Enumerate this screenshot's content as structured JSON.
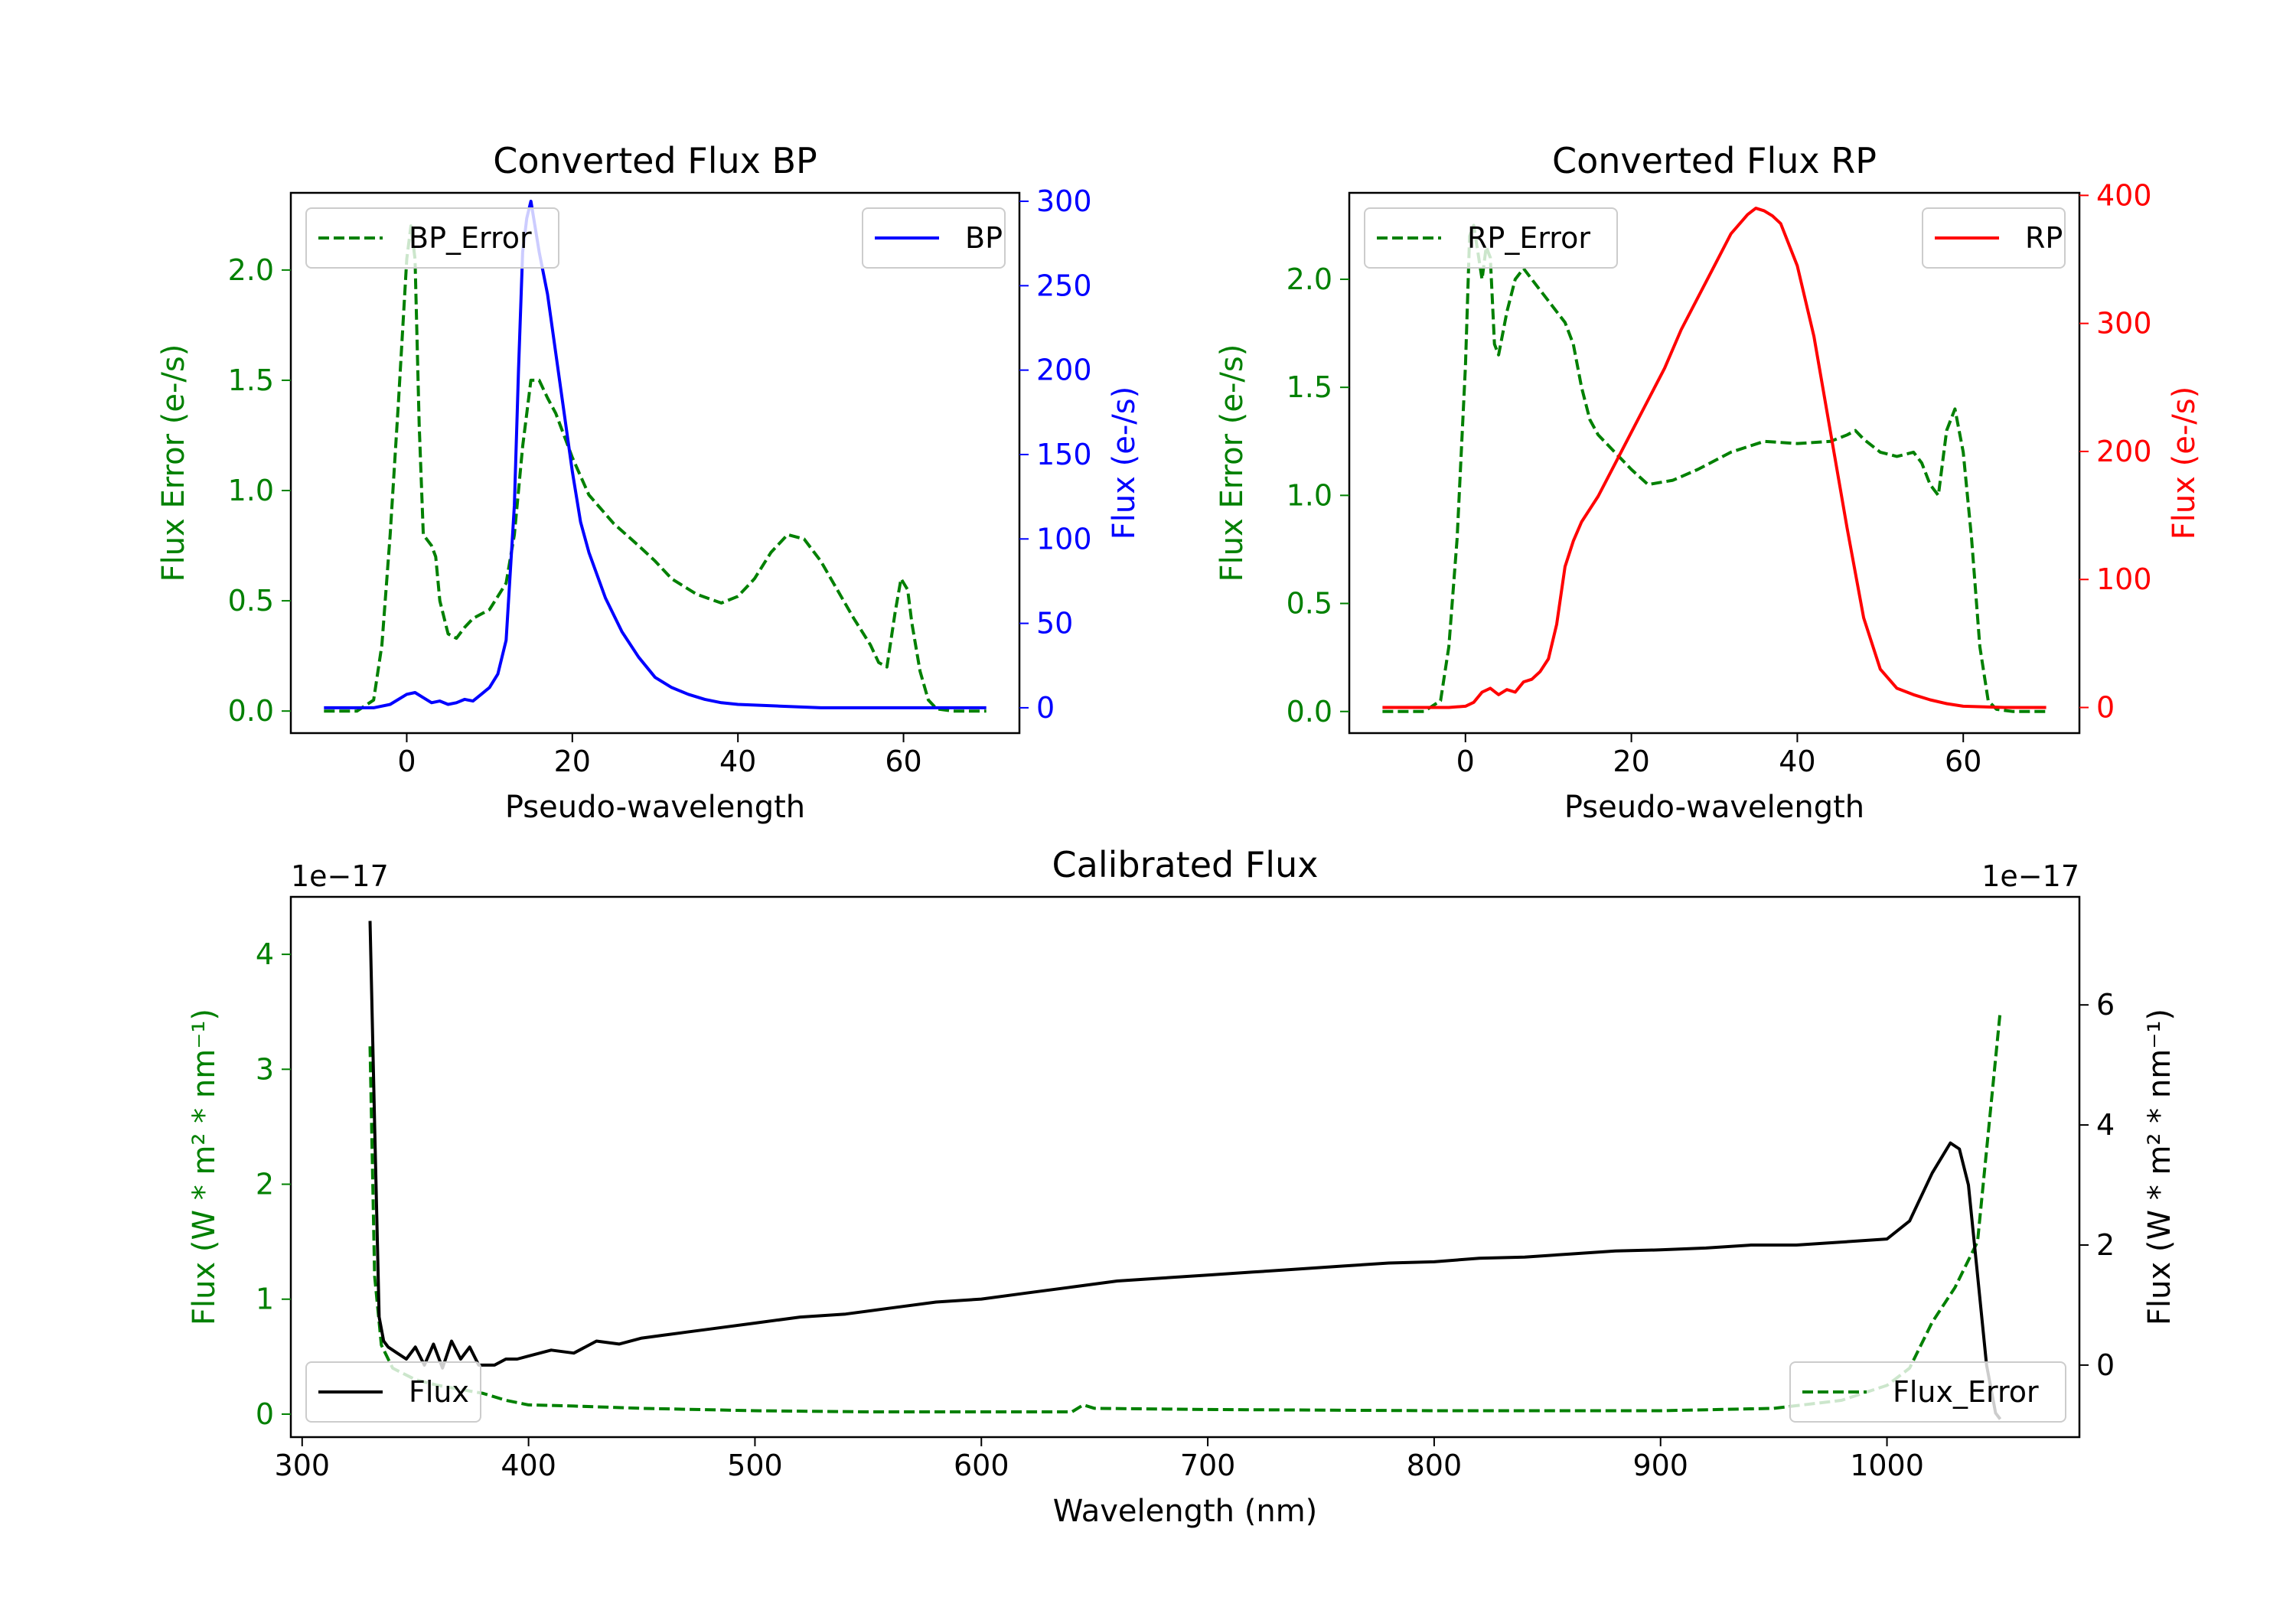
{
  "chart_data": [
    {
      "id": "bp",
      "type": "line",
      "title": "Converted Flux BP",
      "xlabel": "Pseudo-wavelength",
      "ylabel_left": "Flux Error (e-/s)",
      "ylabel_right": "Flux (e-/s)",
      "xlim": [
        -14,
        74
      ],
      "ylim_left": [
        -0.1,
        2.35
      ],
      "ylim_right": [
        -15,
        305
      ],
      "xticks": [
        0,
        20,
        40,
        60
      ],
      "yticks_left": [
        0.0,
        0.5,
        1.0,
        1.5,
        2.0
      ],
      "yticks_right": [
        0,
        50,
        100,
        150,
        200,
        250,
        300
      ],
      "legend_left_label": "BP_Error",
      "legend_right_label": "BP",
      "left_axis_color": "#008000",
      "right_axis_color": "#0000ff",
      "series": [
        {
          "name": "BP_Error",
          "axis": "left",
          "color": "#008000",
          "dashed": true,
          "x": [
            -10,
            -6,
            -4,
            -3,
            -2,
            -1,
            0,
            0.5,
            1,
            1.5,
            2,
            3,
            3.5,
            4,
            5,
            6,
            7,
            8,
            9,
            10,
            11,
            12,
            13,
            14,
            15,
            16,
            17,
            18,
            20,
            22,
            25,
            28,
            30,
            32,
            35,
            38,
            40,
            42,
            44,
            46,
            48,
            50,
            52,
            54,
            56,
            57,
            58,
            59,
            59.7,
            60.5,
            61,
            62,
            63,
            64,
            66,
            70
          ],
          "y": [
            0.0,
            0.0,
            0.05,
            0.3,
            0.8,
            1.4,
            2.05,
            2.2,
            2.05,
            1.3,
            0.8,
            0.75,
            0.7,
            0.5,
            0.35,
            0.33,
            0.38,
            0.42,
            0.44,
            0.46,
            0.52,
            0.58,
            0.8,
            1.2,
            1.5,
            1.5,
            1.42,
            1.35,
            1.15,
            0.98,
            0.85,
            0.75,
            0.68,
            0.6,
            0.53,
            0.49,
            0.52,
            0.6,
            0.72,
            0.8,
            0.78,
            0.68,
            0.55,
            0.42,
            0.3,
            0.22,
            0.2,
            0.45,
            0.6,
            0.55,
            0.4,
            0.18,
            0.05,
            0.01,
            0.0,
            0.0
          ]
        },
        {
          "name": "BP",
          "axis": "right",
          "color": "#0000ff",
          "dashed": false,
          "x": [
            -10,
            -6,
            -4,
            -2,
            0,
            1,
            2,
            3,
            4,
            5,
            6,
            7,
            8,
            9,
            10,
            11,
            12,
            13,
            13.5,
            14,
            14.5,
            15,
            15.5,
            16,
            17,
            18,
            19,
            20,
            21,
            22,
            24,
            26,
            28,
            30,
            32,
            34,
            36,
            38,
            40,
            45,
            50,
            55,
            60,
            65,
            70
          ],
          "y": [
            0,
            0,
            0,
            2,
            8,
            9,
            6,
            3,
            4,
            2,
            3,
            5,
            4,
            8,
            12,
            20,
            40,
            120,
            200,
            270,
            290,
            300,
            285,
            270,
            245,
            210,
            175,
            140,
            110,
            92,
            65,
            45,
            30,
            18,
            12,
            8,
            5,
            3,
            2,
            1,
            0,
            0,
            0,
            0,
            0
          ]
        }
      ]
    },
    {
      "id": "rp",
      "type": "line",
      "title": "Converted Flux RP",
      "xlabel": "Pseudo-wavelength",
      "ylabel_left": "Flux Error (e-/s)",
      "ylabel_right": "Flux (e-/s)",
      "xlim": [
        -14,
        74
      ],
      "ylim_left": [
        -0.1,
        2.4
      ],
      "ylim_right": [
        -20,
        402
      ],
      "xticks": [
        0,
        20,
        40,
        60
      ],
      "yticks_left": [
        0.0,
        0.5,
        1.0,
        1.5,
        2.0
      ],
      "yticks_right": [
        0,
        100,
        200,
        300,
        400
      ],
      "legend_left_label": "RP_Error",
      "legend_right_label": "RP",
      "left_axis_color": "#008000",
      "right_axis_color": "#ff0000",
      "series": [
        {
          "name": "RP_Error",
          "axis": "left",
          "color": "#008000",
          "dashed": true,
          "x": [
            -10,
            -5,
            -3,
            -2,
            -1,
            0,
            0.5,
            1,
            2,
            2.5,
            3,
            3.5,
            4,
            5,
            6,
            7,
            8,
            9,
            10,
            11,
            12,
            13,
            14,
            15,
            16,
            18,
            20,
            22,
            25,
            28,
            32,
            36,
            40,
            44,
            46,
            47,
            48,
            50,
            52,
            54,
            55,
            56,
            57,
            58,
            59,
            60,
            61,
            62,
            63,
            64,
            66,
            70
          ],
          "y": [
            0.0,
            0.0,
            0.05,
            0.3,
            0.8,
            1.6,
            2.2,
            2.25,
            2.0,
            2.15,
            2.1,
            1.7,
            1.65,
            1.85,
            2.0,
            2.05,
            2.0,
            1.95,
            1.9,
            1.85,
            1.8,
            1.7,
            1.5,
            1.35,
            1.28,
            1.2,
            1.12,
            1.05,
            1.07,
            1.12,
            1.2,
            1.25,
            1.24,
            1.25,
            1.28,
            1.3,
            1.26,
            1.2,
            1.18,
            1.2,
            1.15,
            1.05,
            1.0,
            1.3,
            1.4,
            1.2,
            0.8,
            0.3,
            0.05,
            0.01,
            0.0,
            0.0
          ]
        },
        {
          "name": "RP",
          "axis": "right",
          "color": "#ff0000",
          "dashed": false,
          "x": [
            -10,
            -5,
            -2,
            0,
            1,
            2,
            3,
            4,
            5,
            6,
            7,
            8,
            9,
            10,
            11,
            12,
            13,
            14,
            15,
            16,
            18,
            20,
            22,
            24,
            26,
            28,
            30,
            32,
            34,
            35,
            36,
            37,
            38,
            40,
            42,
            44,
            46,
            48,
            50,
            52,
            54,
            56,
            58,
            60,
            65,
            70
          ],
          "y": [
            0,
            0,
            0,
            1,
            4,
            12,
            15,
            10,
            14,
            12,
            20,
            22,
            28,
            38,
            65,
            110,
            130,
            145,
            155,
            165,
            190,
            215,
            240,
            265,
            295,
            320,
            345,
            370,
            385,
            390,
            388,
            384,
            378,
            345,
            290,
            215,
            140,
            70,
            30,
            15,
            10,
            6,
            3,
            1,
            0,
            0
          ]
        }
      ]
    },
    {
      "id": "calibrated",
      "type": "line",
      "title": "Calibrated Flux",
      "xlabel": "Wavelength (nm)",
      "ylabel_left": "Flux (W * m² * nm⁻¹)",
      "ylabel_right": "Flux (W * m² * nm⁻¹)",
      "left_exponent": "1e−17",
      "right_exponent": "1e−17",
      "xlim": [
        295,
        1085
      ],
      "ylim_left": [
        -0.2,
        4.5
      ],
      "ylim_right": [
        -1.2,
        7.8
      ],
      "xticks": [
        300,
        400,
        500,
        600,
        700,
        800,
        900,
        1000
      ],
      "yticks_left": [
        0,
        1,
        2,
        3,
        4
      ],
      "yticks_right": [
        0,
        2,
        4,
        6
      ],
      "legend_left_label": "Flux",
      "legend_right_label": "Flux_Error",
      "left_axis_color": "#008000",
      "right_axis_color": "#000000",
      "series": [
        {
          "name": "Flux_Error",
          "axis": "left",
          "color": "#008000",
          "dashed": true,
          "x": [
            330,
            332,
            335,
            340,
            350,
            360,
            380,
            390,
            400,
            420,
            450,
            500,
            550,
            600,
            640,
            645,
            650,
            700,
            800,
            900,
            950,
            980,
            1000,
            1010,
            1020,
            1030,
            1040,
            1045,
            1050
          ],
          "y": [
            3.2,
            1.2,
            0.6,
            0.4,
            0.3,
            0.25,
            0.18,
            0.12,
            0.08,
            0.07,
            0.05,
            0.03,
            0.02,
            0.02,
            0.02,
            0.08,
            0.05,
            0.04,
            0.03,
            0.03,
            0.05,
            0.12,
            0.25,
            0.4,
            0.8,
            1.1,
            1.5,
            2.5,
            3.5
          ]
        },
        {
          "name": "Flux",
          "axis": "right",
          "color": "#000000",
          "dashed": false,
          "x": [
            330,
            332,
            334,
            336,
            338,
            342,
            346,
            350,
            354,
            358,
            362,
            366,
            370,
            374,
            378,
            385,
            390,
            395,
            400,
            410,
            420,
            430,
            440,
            450,
            460,
            470,
            480,
            500,
            520,
            540,
            560,
            580,
            600,
            620,
            640,
            660,
            680,
            700,
            720,
            740,
            760,
            780,
            800,
            820,
            840,
            860,
            880,
            900,
            920,
            940,
            960,
            980,
            1000,
            1010,
            1020,
            1028,
            1032,
            1036,
            1040,
            1044,
            1048,
            1050
          ],
          "y": [
            7.4,
            4.0,
            0.8,
            0.4,
            0.3,
            0.2,
            0.1,
            0.3,
            0.0,
            0.35,
            -0.05,
            0.4,
            0.1,
            0.3,
            0.0,
            0.0,
            0.1,
            0.1,
            0.15,
            0.25,
            0.2,
            0.4,
            0.35,
            0.45,
            0.5,
            0.55,
            0.6,
            0.7,
            0.8,
            0.85,
            0.95,
            1.05,
            1.1,
            1.2,
            1.3,
            1.4,
            1.45,
            1.5,
            1.55,
            1.6,
            1.65,
            1.7,
            1.72,
            1.78,
            1.8,
            1.85,
            1.9,
            1.92,
            1.95,
            2.0,
            2.0,
            2.05,
            2.1,
            2.4,
            3.2,
            3.7,
            3.6,
            3.0,
            1.5,
            0.0,
            -0.8,
            -0.9
          ]
        }
      ]
    }
  ]
}
